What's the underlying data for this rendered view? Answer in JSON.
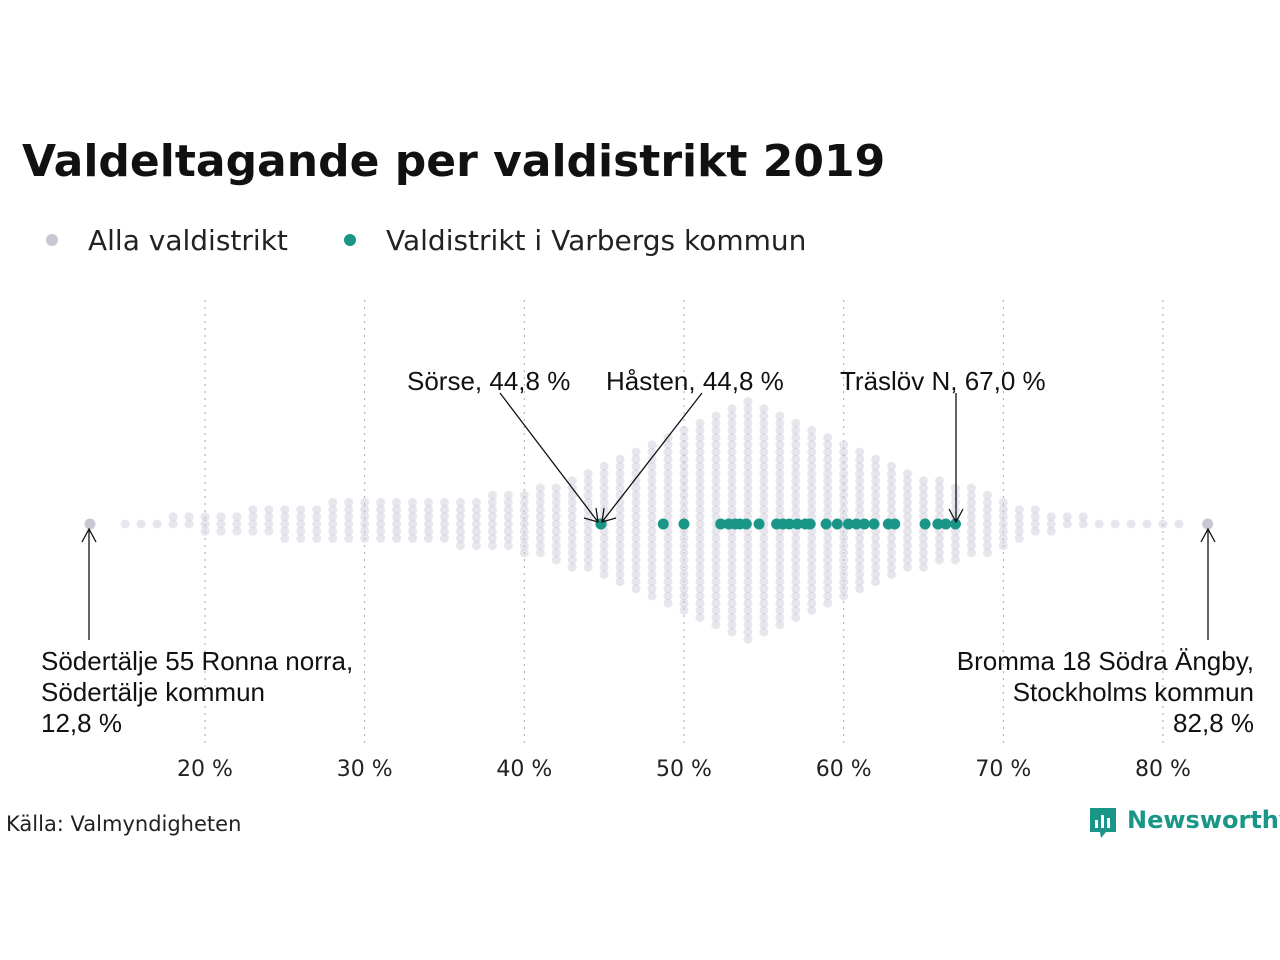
{
  "title": "Valdeltagande per valdistrikt 2019",
  "legend": [
    {
      "label": "Alla valdistrikt",
      "color": "#c9c7d4"
    },
    {
      "label": "Valdistrikt i Varbergs kommun",
      "color": "#1a9688"
    }
  ],
  "source": "Källa: Valmyndigheten",
  "logo": {
    "text": "Newsworthy",
    "color": "#1a9688",
    "icon": "bar-chart-bubble-icon"
  },
  "chart_data": {
    "type": "scatter",
    "title": "Valdeltagande per valdistrikt 2019",
    "xlabel": "",
    "ylabel": "",
    "xlim": [
      12,
      83
    ],
    "grid": "vertical dotted",
    "x_ticks": [
      20,
      30,
      40,
      50,
      60,
      70,
      80
    ],
    "x_tick_labels": [
      "20 %",
      "30 %",
      "40 %",
      "50 %",
      "60 %",
      "70 %",
      "80 %"
    ],
    "legend_position": "top-left",
    "series": [
      {
        "name": "Alla valdistrikt",
        "color": "#c9c7d4",
        "distribution_profile": [
          [
            12.8,
            1
          ],
          [
            15,
            1
          ],
          [
            16,
            1
          ],
          [
            17,
            1
          ],
          [
            18,
            2
          ],
          [
            19,
            2
          ],
          [
            20,
            3
          ],
          [
            21,
            3
          ],
          [
            22,
            3
          ],
          [
            23,
            4
          ],
          [
            24,
            4
          ],
          [
            25,
            5
          ],
          [
            26,
            5
          ],
          [
            27,
            5
          ],
          [
            28,
            6
          ],
          [
            29,
            6
          ],
          [
            30,
            6
          ],
          [
            31,
            6
          ],
          [
            32,
            6
          ],
          [
            33,
            6
          ],
          [
            34,
            6
          ],
          [
            35,
            6
          ],
          [
            36,
            7
          ],
          [
            37,
            7
          ],
          [
            38,
            8
          ],
          [
            39,
            8
          ],
          [
            40,
            9
          ],
          [
            41,
            10
          ],
          [
            42,
            11
          ],
          [
            43,
            13
          ],
          [
            44,
            14
          ],
          [
            45,
            16
          ],
          [
            46,
            18
          ],
          [
            47,
            20
          ],
          [
            48,
            22
          ],
          [
            49,
            24
          ],
          [
            50,
            26
          ],
          [
            51,
            28
          ],
          [
            52,
            30
          ],
          [
            53,
            32
          ],
          [
            54,
            34
          ],
          [
            55,
            32
          ],
          [
            56,
            30
          ],
          [
            57,
            28
          ],
          [
            58,
            26
          ],
          [
            59,
            24
          ],
          [
            60,
            22
          ],
          [
            61,
            20
          ],
          [
            62,
            18
          ],
          [
            63,
            16
          ],
          [
            64,
            14
          ],
          [
            65,
            13
          ],
          [
            66,
            12
          ],
          [
            67,
            11
          ],
          [
            68,
            10
          ],
          [
            69,
            9
          ],
          [
            70,
            7
          ],
          [
            71,
            5
          ],
          [
            72,
            4
          ],
          [
            73,
            3
          ],
          [
            74,
            2
          ],
          [
            75,
            2
          ],
          [
            76,
            1
          ],
          [
            77,
            1
          ],
          [
            78,
            1
          ],
          [
            79,
            1
          ],
          [
            80,
            1
          ],
          [
            81,
            1
          ],
          [
            82.8,
            1
          ]
        ]
      },
      {
        "name": "Valdistrikt i Varbergs kommun",
        "color": "#1a9688",
        "values": [
          44.8,
          44.8,
          48.7,
          50.0,
          52.3,
          52.8,
          53.2,
          53.5,
          53.9,
          54.7,
          55.8,
          56.2,
          56.6,
          57.1,
          57.6,
          57.9,
          58.9,
          59.6,
          60.3,
          60.8,
          61.3,
          61.9,
          62.8,
          63.2,
          65.1,
          65.9,
          66.4,
          67.0
        ]
      }
    ],
    "annotations": [
      {
        "text": "Sörse, 44,8 %",
        "x": 44.8
      },
      {
        "text": "Håsten, 44,8 %",
        "x": 44.8
      },
      {
        "text": "Träslöv N, 67,0 %",
        "x": 67.0
      },
      {
        "lines": [
          "Södertälje 55 Ronna norra,",
          "Södertälje kommun",
          "12,8 %"
        ],
        "x": 12.8
      },
      {
        "lines": [
          "Bromma 18 Södra Ängby,",
          "Stockholms kommun",
          "82,8 %"
        ],
        "x": 82.8
      }
    ]
  }
}
